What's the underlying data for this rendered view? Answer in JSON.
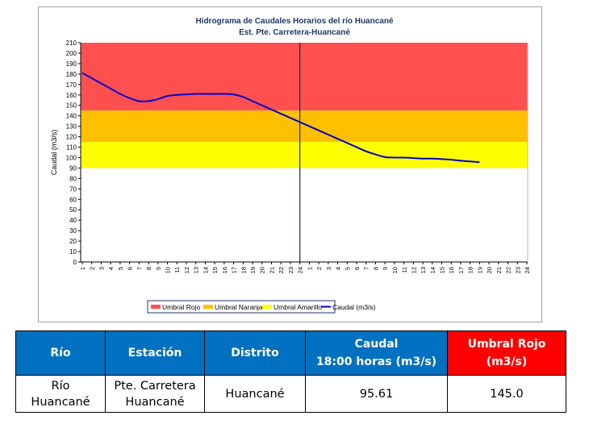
{
  "chart_data": {
    "type": "line",
    "title": "Hidrograma de Caudales Horarios del río Huancané",
    "subtitle": "Est. Pte. Carretera-Huancané",
    "ylabel": "Caudal  (m3/s)",
    "ylim": [
      0,
      210
    ],
    "yticks": [
      0,
      10,
      20,
      30,
      40,
      50,
      60,
      70,
      80,
      90,
      100,
      110,
      120,
      130,
      140,
      150,
      160,
      170,
      180,
      190,
      200,
      210
    ],
    "x_tick_labels": [
      "1",
      "2",
      "3",
      "4",
      "5",
      "6",
      "7",
      "8",
      "9",
      "10",
      "11",
      "12",
      "13",
      "14",
      "15",
      "16",
      "17",
      "18",
      "19",
      "20",
      "21",
      "22",
      "23",
      "24",
      "1",
      "2",
      "3",
      "4",
      "5",
      "6",
      "7",
      "8",
      "9",
      "10",
      "11",
      "12",
      "13",
      "14",
      "15",
      "16",
      "17",
      "18",
      "19",
      "20",
      "21",
      "22",
      "23",
      "24"
    ],
    "day_divider_after_index": 23,
    "bands": [
      {
        "name": "Umbral Rojo",
        "from": 145,
        "to": 210,
        "color": "#ff5050"
      },
      {
        "name": "Umbral Naranja",
        "from": 115,
        "to": 145,
        "color": "#ffc000"
      },
      {
        "name": "Umbral Amarillo",
        "from": 90,
        "to": 115,
        "color": "#ffff00"
      }
    ],
    "series": [
      {
        "name": "Caudal (m3/s)",
        "color": "#0000cc",
        "values": [
          181,
          176,
          171,
          166,
          161,
          157,
          154,
          154,
          156,
          159,
          160,
          160.5,
          161,
          161,
          161,
          161,
          160.5,
          158,
          154,
          150,
          146,
          142,
          138,
          134,
          130,
          126,
          122,
          118,
          114,
          110,
          106,
          103,
          100.5,
          100,
          100,
          99.5,
          99,
          99,
          98.5,
          98,
          97,
          96.3,
          95.61
        ]
      }
    ],
    "legend": [
      "Umbral Rojo",
      "Umbral Naranja",
      "Umbral Amarillo",
      "Caudal (m3/s)"
    ],
    "legend_position": "bottom"
  },
  "table": {
    "headers": [
      "Río",
      "Estación",
      "Distrito",
      "Caudal",
      "18:00 horas (m3/s)",
      "Umbral Rojo",
      "(m3/s)"
    ],
    "row": [
      "Río",
      "Huancané",
      "Pte. Carretera",
      "Huancané",
      "Huancané",
      "95.61",
      "145.0"
    ]
  }
}
